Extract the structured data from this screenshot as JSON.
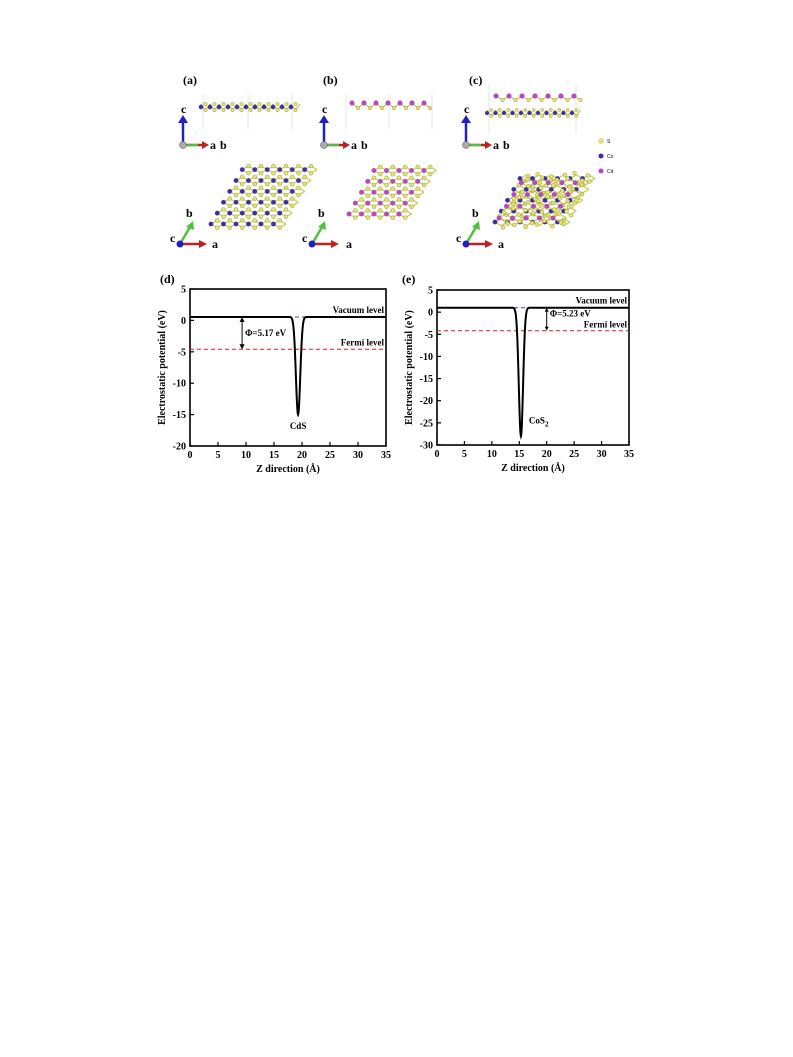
{
  "panels": {
    "a": "(a)",
    "b": "(b)",
    "c": "(c)",
    "d": "(d)",
    "e": "(e)"
  },
  "axis_labels": {
    "a": "a",
    "b": "b",
    "c": "c"
  },
  "legend": [
    {
      "label": "S",
      "color": "#e6e65a"
    },
    {
      "label": "Co",
      "color": "#3a2bb0"
    },
    {
      "label": "Cd",
      "color": "#c040d0"
    }
  ],
  "colors": {
    "s_atom": "#e6e65a",
    "co_atom": "#3a2bb0",
    "cd_atom": "#c040d0",
    "axis_a": "#c02020",
    "axis_b": "#50c040",
    "axis_c": "#2020c0",
    "vacuum_line": "#3a3ad0",
    "fermi_line": "#d02020"
  },
  "chart_data": [
    {
      "type": "line",
      "xlabel": "Z direction (Å)",
      "ylabel": "Electrostatic potential (eV)",
      "xlim": [
        0,
        35
      ],
      "ylim": [
        -20,
        5
      ],
      "xticks": [
        0,
        5,
        10,
        15,
        20,
        25,
        30,
        35
      ],
      "yticks": [
        5,
        0,
        -5,
        -10,
        -15,
        -20
      ],
      "curve": {
        "baseline": 0.55,
        "well_center": 19.3,
        "well_min": -15.0,
        "well_width": 0.55
      },
      "vacuum_level": 0.55,
      "fermi_level": -4.6,
      "labels": {
        "vacuum": "Vacuum level",
        "fermi": "Fermi level",
        "phi": "Φ=5.17 eV",
        "material": "CdS"
      },
      "grid": false
    },
    {
      "type": "line",
      "xlabel": "Z direction (Å)",
      "ylabel": "Electrostatic potential (eV)",
      "xlim": [
        0,
        35
      ],
      "ylim": [
        -30,
        5
      ],
      "xticks": [
        0,
        5,
        10,
        15,
        20,
        25,
        30,
        35
      ],
      "yticks": [
        5,
        0,
        -5,
        -10,
        -15,
        -20,
        -25,
        -30
      ],
      "curve": {
        "baseline": 1.0,
        "well_center": 15.3,
        "well_min": -28.0,
        "well_width": 0.55
      },
      "vacuum_level": 1.0,
      "fermi_level": -4.2,
      "labels": {
        "vacuum": "Vacuum level",
        "fermi": "Fermi level",
        "phi": "Φ=5.23 eV",
        "material": "CoS",
        "material_sub": "2"
      },
      "grid": false
    }
  ]
}
